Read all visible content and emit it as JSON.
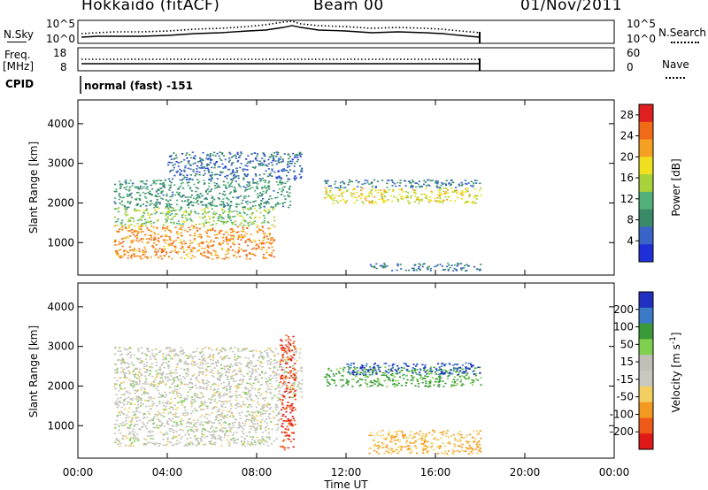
{
  "header": {
    "station": "Hokkaido (fitACF)",
    "beam": "Beam 00",
    "date": "01/Nov/2011"
  },
  "top_panel": {
    "nsky_label": "N.Sky",
    "nsearch_label": "N.Search",
    "freq_label_1": "Freq.",
    "freq_label_2": "[MHz]",
    "nave_label": "Nave",
    "cpid_label": "CPID",
    "cpid_value": "normal (fast) -151",
    "noise_left_ticks": [
      "10^5",
      "10^0"
    ],
    "noise_right_ticks": [
      "10^5",
      "10^0"
    ],
    "freq_left_ticks": [
      "18",
      "8"
    ],
    "freq_right_ticks": [
      "60",
      "0"
    ]
  },
  "colors": {
    "power_scale": [
      "#1f2fd8",
      "#3a63c8",
      "#3a8a6a",
      "#52b07a",
      "#a8d23a",
      "#f0e020",
      "#f5a020",
      "#f06a18",
      "#e02020"
    ],
    "velocity_scale": [
      "#e01818",
      "#f05a18",
      "#f59a20",
      "#f2cf60",
      "#c8c8c0",
      "#c0c0b8",
      "#80d050",
      "#3a9a3a",
      "#3a7ac8",
      "#2030c0"
    ]
  },
  "chart_data": [
    {
      "type": "heatmap",
      "title": "Power",
      "xlabel": "Time UT",
      "ylabel": "Slant Range [km]",
      "x_ticks": [
        "00:00",
        "04:00",
        "08:00",
        "12:00",
        "16:00",
        "20:00",
        "00:00"
      ],
      "y_ticks": [
        1000,
        2000,
        3000,
        4000
      ],
      "xlim": [
        0,
        24
      ],
      "ylim": [
        180,
        4600
      ],
      "colorbar_label": "Power [dB]",
      "colorbar_ticks": [
        4,
        8,
        12,
        16,
        20,
        24,
        28
      ],
      "colorbar_range": [
        0,
        30
      ],
      "regions": [
        {
          "t0": 1.6,
          "t1": 8.8,
          "r0": 600,
          "r1": 1450,
          "value": 24
        },
        {
          "t0": 1.6,
          "t1": 8.8,
          "r0": 1450,
          "r1": 1900,
          "value": 14
        },
        {
          "t0": 1.6,
          "t1": 9.5,
          "r0": 1900,
          "r1": 2600,
          "value": 9
        },
        {
          "t0": 4.0,
          "t1": 10.0,
          "r0": 2600,
          "r1": 3300,
          "value": 5
        },
        {
          "t0": 11.0,
          "t1": 18.0,
          "r0": 2000,
          "r1": 2400,
          "value": 18
        },
        {
          "t0": 11.0,
          "t1": 18.0,
          "r0": 2400,
          "r1": 2600,
          "value": 6
        },
        {
          "t0": 13.0,
          "t1": 18.0,
          "r0": 300,
          "r1": 500,
          "value": 6
        }
      ]
    },
    {
      "type": "heatmap",
      "title": "Velocity",
      "xlabel": "Time UT",
      "ylabel": "Slant Range [km]",
      "x_ticks": [
        "00:00",
        "04:00",
        "08:00",
        "12:00",
        "16:00",
        "20:00",
        "00:00"
      ],
      "y_ticks": [
        1000,
        2000,
        3000,
        4000
      ],
      "xlim": [
        0,
        24
      ],
      "ylim": [
        180,
        4600
      ],
      "colorbar_label": "Velocity [m s^-1]",
      "colorbar_ticks": [
        200,
        100,
        50,
        15,
        -15,
        -50,
        -100,
        -200
      ],
      "regions": [
        {
          "t0": 1.6,
          "t1": 9.0,
          "r0": 500,
          "r1": 1700,
          "value": 0
        },
        {
          "t0": 1.6,
          "t1": 10.0,
          "r0": 1700,
          "r1": 3000,
          "value": 0
        },
        {
          "t0": 9.0,
          "t1": 9.7,
          "r0": 400,
          "r1": 3300,
          "value": -200
        },
        {
          "t0": 11.0,
          "t1": 18.0,
          "r0": 2000,
          "r1": 2500,
          "value": 60
        },
        {
          "t0": 12.0,
          "t1": 18.0,
          "r0": 2300,
          "r1": 2600,
          "value": 200
        },
        {
          "t0": 13.0,
          "t1": 18.0,
          "r0": 300,
          "r1": 900,
          "value": -50
        }
      ]
    }
  ]
}
